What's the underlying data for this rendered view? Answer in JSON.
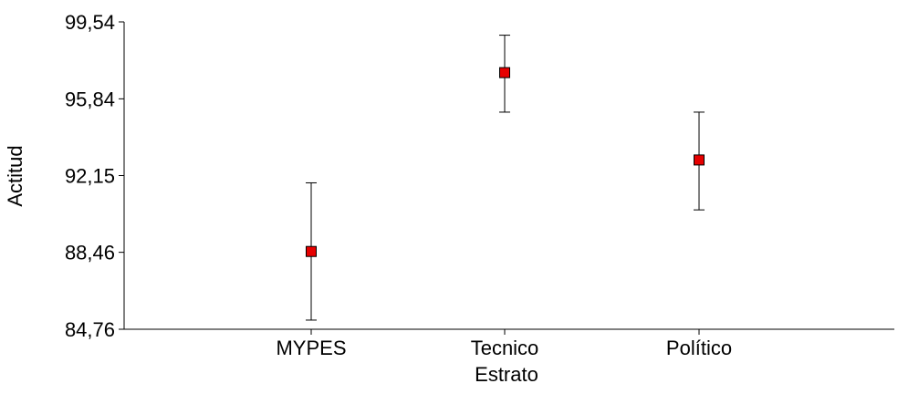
{
  "chart_data": {
    "type": "scatter",
    "title": "",
    "xlabel": "Estrato",
    "ylabel": "Actitud",
    "categories": [
      "MYPES",
      "Tecnico",
      "Político"
    ],
    "y_ticks": [
      "84,76",
      "88,46",
      "92,15",
      "95,84",
      "99,54"
    ],
    "y_tick_values": [
      84.76,
      88.46,
      92.15,
      95.84,
      99.54
    ],
    "ylim": [
      84.76,
      99.54
    ],
    "grid": false,
    "series": [
      {
        "values": [
          88.5,
          97.1,
          92.9
        ],
        "error_low": [
          85.2,
          95.2,
          90.5
        ],
        "error_high": [
          91.8,
          98.9,
          95.2
        ]
      }
    ],
    "marker_color": "#e60000"
  }
}
